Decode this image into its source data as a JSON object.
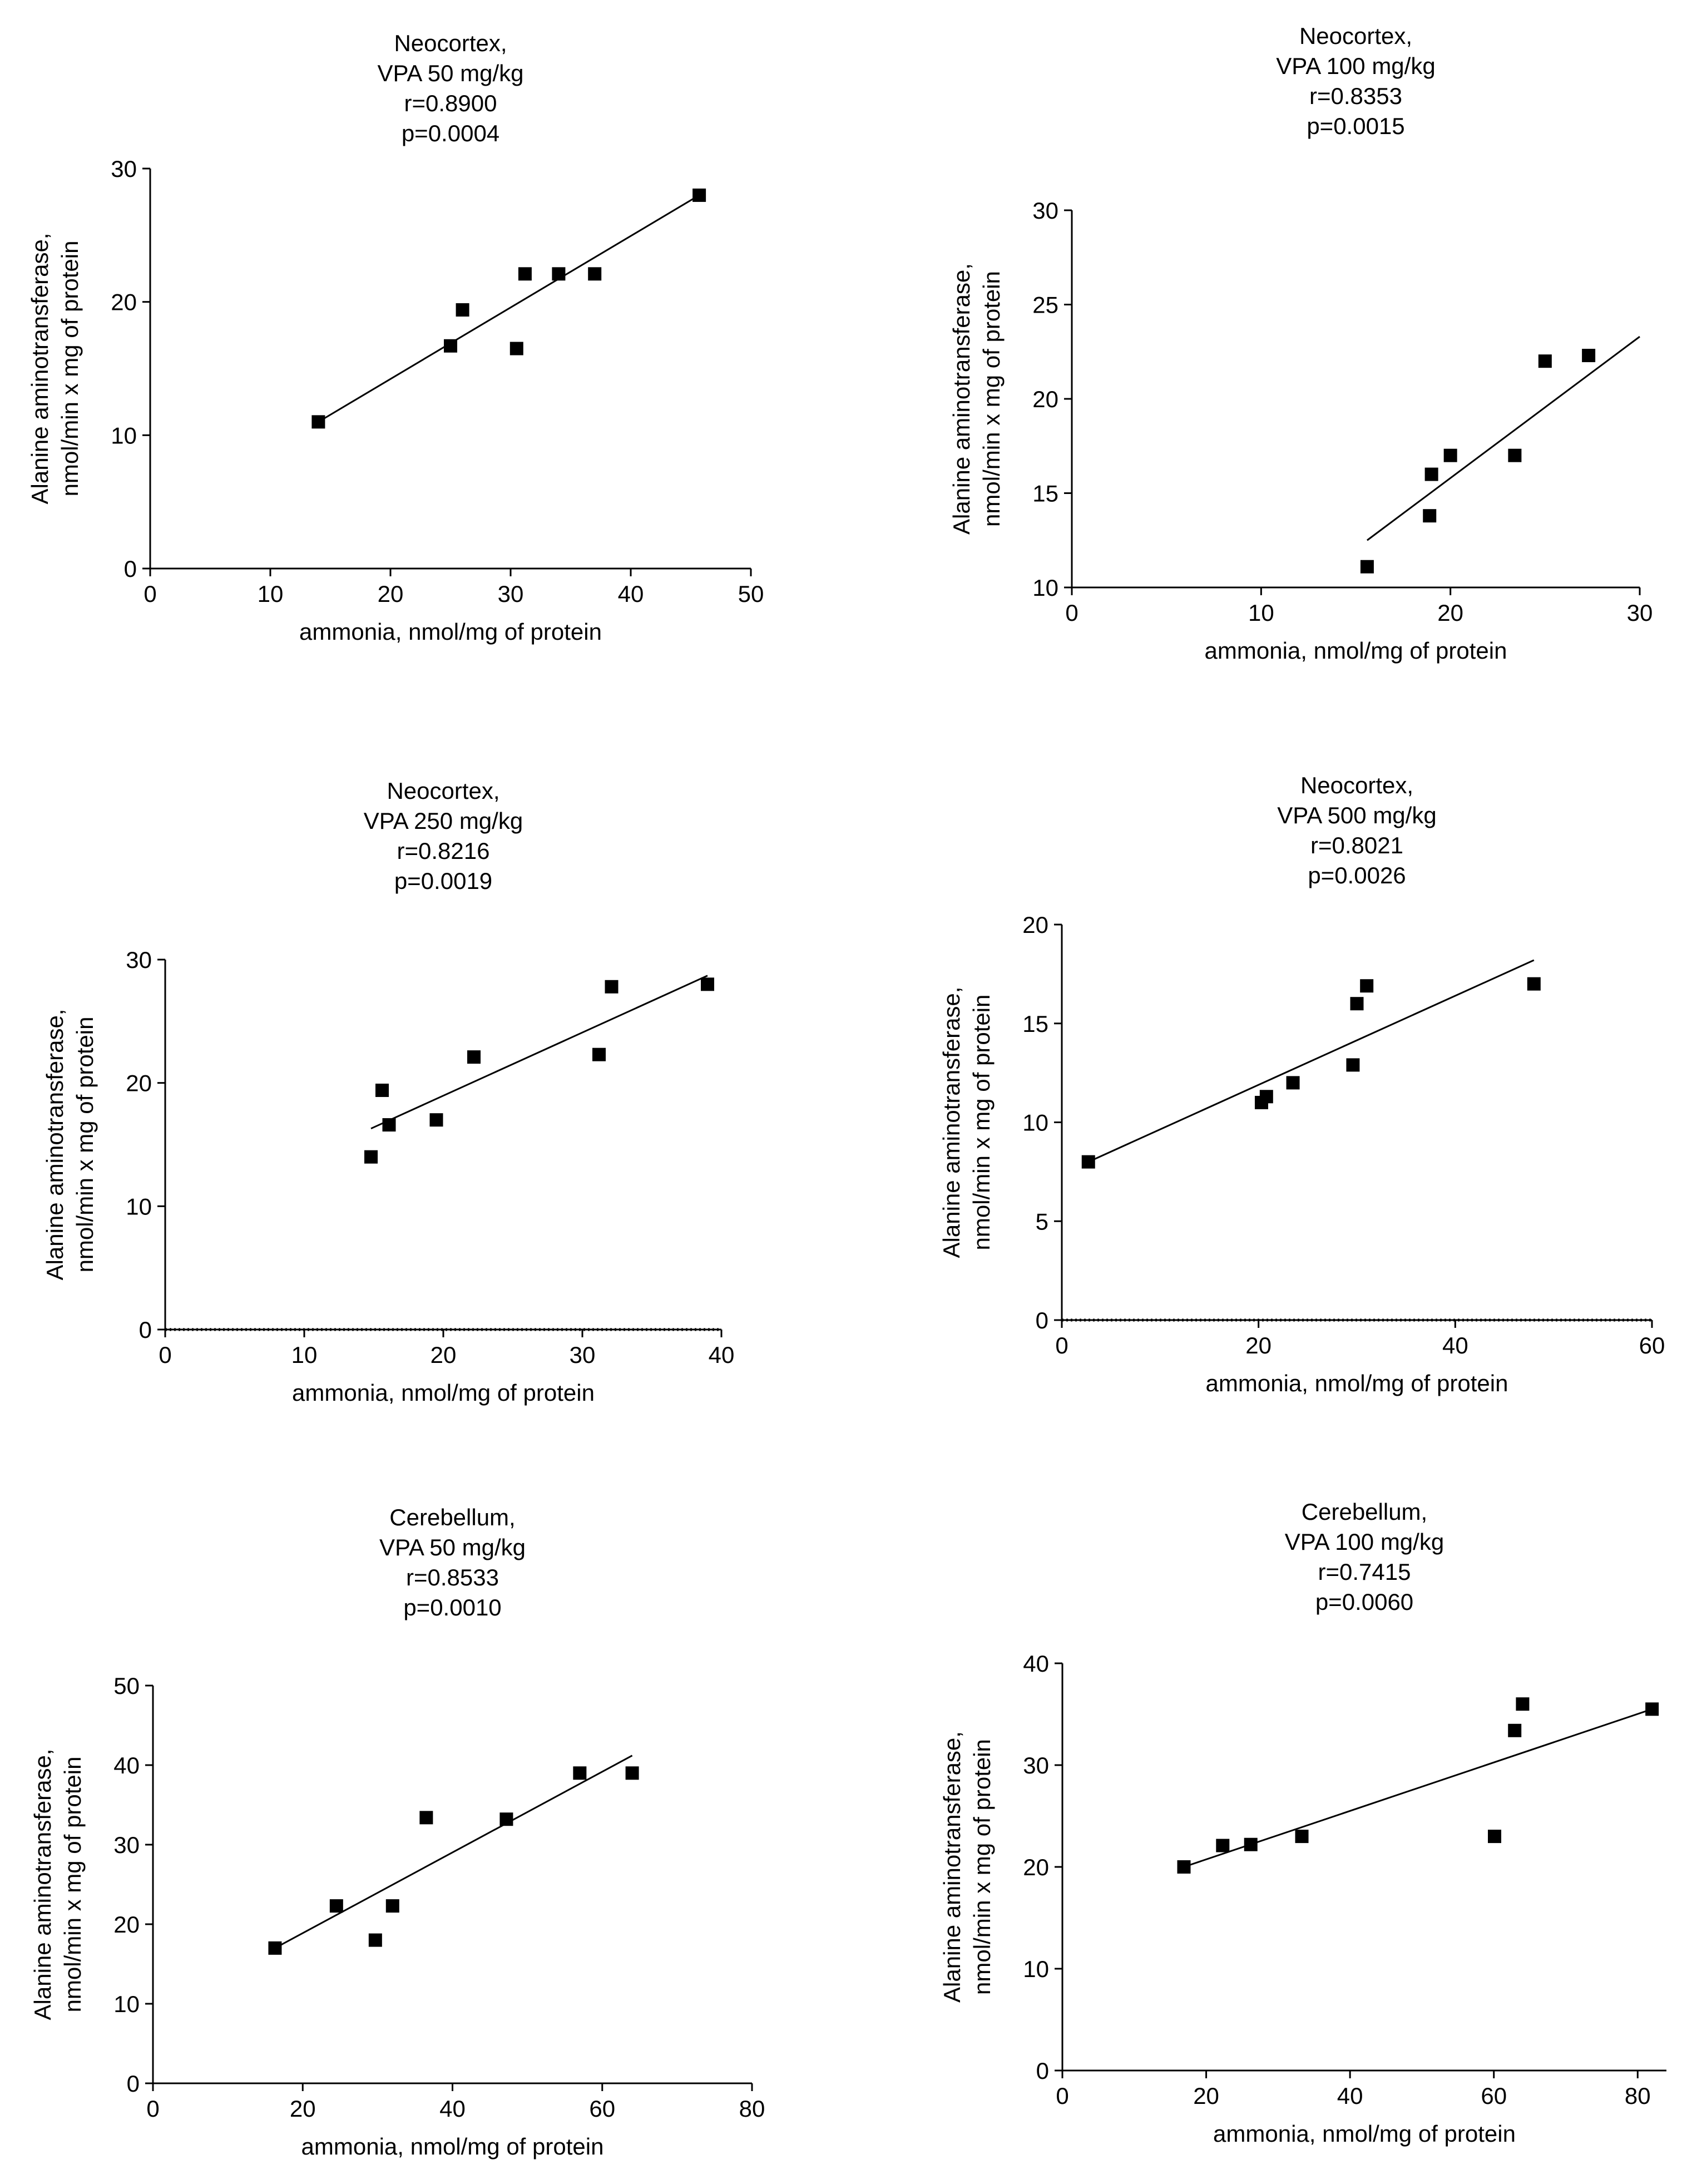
{
  "chart_data": [
    {
      "type": "scatter",
      "title": [
        "Neocortex,",
        "VPA 50 mg/kg",
        "r=0.8900",
        "p=0.0004"
      ],
      "xlabel": "ammonia, nmol/mg of protein",
      "ylabel": [
        "Alanine aminotransferase,",
        "nmol/min x mg of protein"
      ],
      "xlim": [
        0,
        50
      ],
      "ylim": [
        0,
        30
      ],
      "xticks": [
        0,
        10,
        20,
        30,
        40,
        50
      ],
      "yticks": [
        0,
        10,
        20,
        30
      ],
      "points": [
        [
          14,
          11
        ],
        [
          25,
          16.7
        ],
        [
          26,
          19.4
        ],
        [
          30.5,
          16.5
        ],
        [
          31.2,
          22.1
        ],
        [
          34,
          22.1
        ],
        [
          37,
          22.1
        ],
        [
          45.7,
          28
        ]
      ],
      "fit": [
        [
          14,
          11
        ],
        [
          45.7,
          28
        ]
      ],
      "zero_line": false
    },
    {
      "type": "scatter",
      "title": [
        "Neocortex,",
        "VPA 100 mg/kg",
        "r=0.8353",
        "p=0.0015"
      ],
      "xlabel": "ammonia, nmol/mg of protein",
      "ylabel": [
        "Alanine aminotransferase,",
        "nmol/min x mg of protein"
      ],
      "xlim": [
        0,
        30
      ],
      "ylim": [
        10,
        30
      ],
      "xticks": [
        0,
        10,
        20,
        30
      ],
      "yticks": [
        10,
        15,
        20,
        25,
        30
      ],
      "points": [
        [
          15.6,
          11.1
        ],
        [
          18.9,
          13.8
        ],
        [
          19,
          16
        ],
        [
          20,
          17
        ],
        [
          23.4,
          17
        ],
        [
          25,
          22
        ],
        [
          27.3,
          22.3
        ]
      ],
      "fit": [
        [
          15.6,
          12.5
        ],
        [
          30,
          23.3
        ]
      ],
      "zero_line": false
    },
    {
      "type": "scatter",
      "title": [
        "Neocortex,",
        "VPA 250 mg/kg",
        "r=0.8216",
        "p=0.0019"
      ],
      "xlabel": "ammonia, nmol/mg of protein",
      "ylabel": [
        "Alanine aminotransferase,",
        "nmol/min x mg of protein"
      ],
      "xlim": [
        0,
        40
      ],
      "ylim": [
        0,
        30
      ],
      "xticks": [
        0,
        10,
        20,
        30,
        40
      ],
      "yticks": [
        0,
        10,
        20,
        30
      ],
      "points": [
        [
          14.8,
          14
        ],
        [
          15.6,
          19.4
        ],
        [
          16.1,
          16.6
        ],
        [
          19.5,
          17
        ],
        [
          22.2,
          22.1
        ],
        [
          31.2,
          22.3
        ],
        [
          32.1,
          27.8
        ],
        [
          39,
          28
        ]
      ],
      "fit": [
        [
          14.8,
          16.3
        ],
        [
          39,
          28.7
        ]
      ],
      "zero_line": true
    },
    {
      "type": "scatter",
      "title": [
        "Neocortex,",
        "VPA 500 mg/kg",
        "r=0.8021",
        "p=0.0026"
      ],
      "xlabel": "ammonia, nmol/mg of protein",
      "ylabel": [
        "Alanine aminotransferase,",
        "nmol/min x mg of protein"
      ],
      "xlim": [
        0,
        60
      ],
      "ylim": [
        0,
        20
      ],
      "xticks": [
        0,
        20,
        40,
        60
      ],
      "yticks": [
        0,
        5,
        10,
        15,
        20
      ],
      "points": [
        [
          2.7,
          8
        ],
        [
          20.3,
          11
        ],
        [
          20.8,
          11.3
        ],
        [
          23.5,
          12
        ],
        [
          29.6,
          12.9
        ],
        [
          30,
          16
        ],
        [
          31,
          16.9
        ],
        [
          48,
          17
        ]
      ],
      "fit": [
        [
          2.7,
          8
        ],
        [
          48,
          18.2
        ]
      ],
      "zero_line": true
    },
    {
      "type": "scatter",
      "title": [
        "Cerebellum,",
        "VPA 50 mg/kg",
        "r=0.8533",
        "p=0.0010"
      ],
      "xlabel": "ammonia, nmol/mg of protein",
      "ylabel": [
        "Alanine aminotransferase,",
        "nmol/min x mg of protein"
      ],
      "xlim": [
        0,
        80
      ],
      "ylim": [
        0,
        50
      ],
      "xticks": [
        0,
        20,
        40,
        60,
        80
      ],
      "yticks": [
        0,
        10,
        20,
        30,
        40,
        50
      ],
      "points": [
        [
          16.3,
          17
        ],
        [
          24.5,
          22.3
        ],
        [
          29.7,
          18
        ],
        [
          32,
          22.3
        ],
        [
          36.5,
          33.4
        ],
        [
          47.2,
          33.2
        ],
        [
          57,
          39
        ],
        [
          64,
          39
        ]
      ],
      "fit": [
        [
          16.3,
          17
        ],
        [
          64,
          41.2
        ]
      ],
      "zero_line": false
    },
    {
      "type": "scatter",
      "title": [
        "Cerebellum,",
        "VPA 100 mg/kg",
        "r=0.7415",
        "p=0.0060"
      ],
      "xlabel": "ammonia, nmol/mg of protein",
      "ylabel": [
        "Alanine aminotransferase,",
        "nmol/min x mg of protein"
      ],
      "xlim": [
        0,
        84
      ],
      "ylim": [
        0,
        40
      ],
      "xticks": [
        0,
        20,
        40,
        60,
        80
      ],
      "yticks": [
        0,
        10,
        20,
        30,
        40
      ],
      "points": [
        [
          16.9,
          20
        ],
        [
          22.3,
          22.1
        ],
        [
          26.2,
          22.2
        ],
        [
          33.3,
          23
        ],
        [
          60.1,
          23
        ],
        [
          62.9,
          33.4
        ],
        [
          64,
          36
        ],
        [
          82,
          35.5
        ]
      ],
      "fit": [
        [
          16.9,
          20
        ],
        [
          82,
          35.5
        ]
      ],
      "zero_line": false
    }
  ]
}
